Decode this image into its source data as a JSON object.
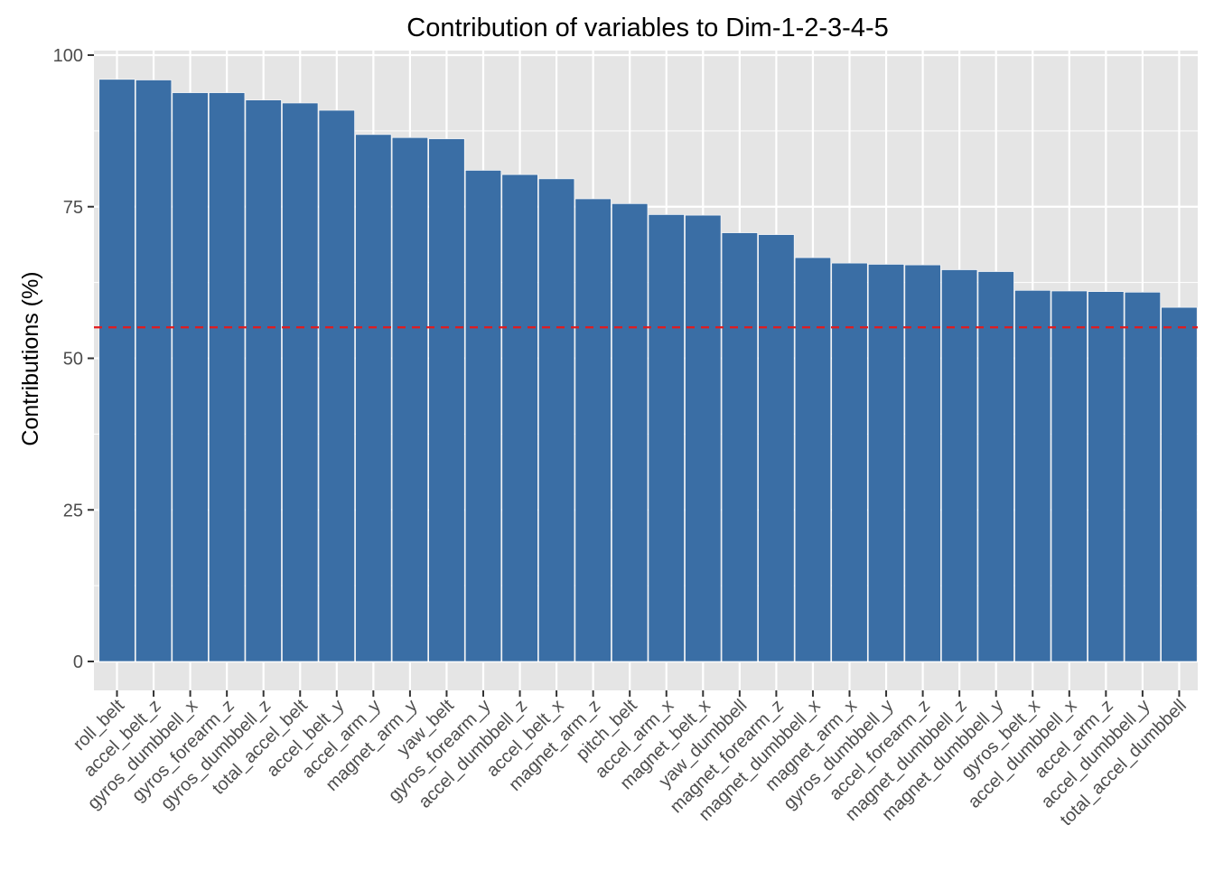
{
  "chart_data": {
    "type": "bar",
    "title": "Contribution of variables to Dim-1-2-3-4-5",
    "xlabel": "",
    "ylabel": "Contributions (%)",
    "ylim": [
      0,
      100
    ],
    "yticks": [
      0,
      25,
      50,
      75,
      100
    ],
    "grid": true,
    "categories": [
      "roll_belt",
      "accel_belt_z",
      "gyros_dumbbell_x",
      "gyros_forearm_z",
      "gyros_dumbbell_z",
      "total_accel_belt",
      "accel_belt_y",
      "accel_arm_y",
      "magnet_arm_y",
      "yaw_belt",
      "gyros_forearm_y",
      "accel_dumbbell_z",
      "accel_belt_x",
      "magnet_arm_z",
      "pitch_belt",
      "accel_arm_x",
      "magnet_belt_x",
      "yaw_dumbbell",
      "magnet_forearm_z",
      "magnet_dumbbell_x",
      "magnet_arm_x",
      "gyros_dumbbell_y",
      "accel_forearm_z",
      "magnet_dumbbell_z",
      "magnet_dumbbell_y",
      "gyros_belt_x",
      "accel_dumbbell_x",
      "accel_arm_z",
      "accel_dumbbell_y",
      "total_accel_dumbbell"
    ],
    "values": [
      96.0,
      95.9,
      93.8,
      93.8,
      92.6,
      92.1,
      90.9,
      86.9,
      86.4,
      86.2,
      81.0,
      80.3,
      79.6,
      76.3,
      75.5,
      73.7,
      73.6,
      70.7,
      70.4,
      66.6,
      65.7,
      65.5,
      65.4,
      64.6,
      64.3,
      61.2,
      61.1,
      61.0,
      60.9,
      58.4
    ],
    "reference_line": {
      "value": 55.1,
      "color": "#e41a1c",
      "style": "dashed"
    },
    "bar_color": "#3a6ea5",
    "panel_color": "#e5e5e5",
    "grid_color": "#ffffff"
  }
}
